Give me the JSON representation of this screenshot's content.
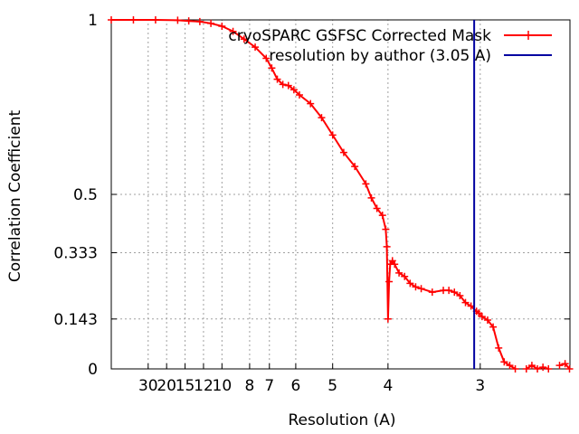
{
  "chart_data": {
    "type": "line",
    "xlabel": "Resolution (A)",
    "ylabel": "Correlation Coefficient",
    "x_scale": "reciprocal",
    "x_range_inverse_A": [
      0.0,
      0.4144
    ],
    "ylim": [
      0,
      1
    ],
    "grid": true,
    "legend_placement": "top-right",
    "x_ticks": [
      {
        "label": "30",
        "value": 30
      },
      {
        "label": "20",
        "value": 20
      },
      {
        "label": "15",
        "value": 15
      },
      {
        "label": "12",
        "value": 12
      },
      {
        "label": "10",
        "value": 10
      },
      {
        "label": "8",
        "value": 8
      },
      {
        "label": "7",
        "value": 7
      },
      {
        "label": "6",
        "value": 6
      },
      {
        "label": "5",
        "value": 5
      },
      {
        "label": "4",
        "value": 4
      },
      {
        "label": "3",
        "value": 3
      }
    ],
    "y_ticks": [
      {
        "label": "0",
        "value": 0
      },
      {
        "label": "0.143",
        "value": 0.143
      },
      {
        "label": "0.333",
        "value": 0.333
      },
      {
        "label": "0.5",
        "value": 0.5
      },
      {
        "label": "1",
        "value": 1
      }
    ],
    "series": [
      {
        "name": "cryoSPARC GSFSC Corrected Mask",
        "color": "#ff0000",
        "marker": "plus",
        "x_inv_A": [
          0.0,
          0.02,
          0.04,
          0.06,
          0.07,
          0.08,
          0.09,
          0.1,
          0.11,
          0.12,
          0.13,
          0.14,
          0.145,
          0.15,
          0.155,
          0.16,
          0.165,
          0.17,
          0.18,
          0.19,
          0.2,
          0.21,
          0.22,
          0.23,
          0.235,
          0.24,
          0.245,
          0.248,
          0.249,
          0.25,
          0.251,
          0.252,
          0.254,
          0.256,
          0.26,
          0.265,
          0.27,
          0.275,
          0.28,
          0.29,
          0.3,
          0.305,
          0.31,
          0.315,
          0.32,
          0.325,
          0.33,
          0.332,
          0.335,
          0.34,
          0.345,
          0.35,
          0.355,
          0.36,
          0.365,
          0.37,
          0.375,
          0.38,
          0.385,
          0.39,
          0.395,
          0.4,
          0.405,
          0.41,
          0.414
        ],
        "values": [
          1.0,
          1.0,
          1.0,
          0.999,
          0.997,
          0.995,
          0.99,
          0.982,
          0.967,
          0.945,
          0.922,
          0.89,
          0.862,
          0.83,
          0.815,
          0.812,
          0.8,
          0.785,
          0.76,
          0.72,
          0.67,
          0.62,
          0.58,
          0.53,
          0.49,
          0.46,
          0.44,
          0.4,
          0.35,
          0.143,
          0.25,
          0.3,
          0.31,
          0.3,
          0.275,
          0.265,
          0.245,
          0.235,
          0.23,
          0.22,
          0.225,
          0.225,
          0.22,
          0.21,
          0.19,
          0.18,
          0.165,
          0.16,
          0.15,
          0.14,
          0.12,
          0.06,
          0.02,
          0.01,
          0.0,
          null,
          0.0,
          0.01,
          0.0,
          0.005,
          0.0,
          null,
          0.01,
          0.015,
          0.0
        ]
      },
      {
        "name": "resolution by author (3.05 A)",
        "color": "#0000a0",
        "type": "vline",
        "x_A": 3.05
      }
    ]
  }
}
